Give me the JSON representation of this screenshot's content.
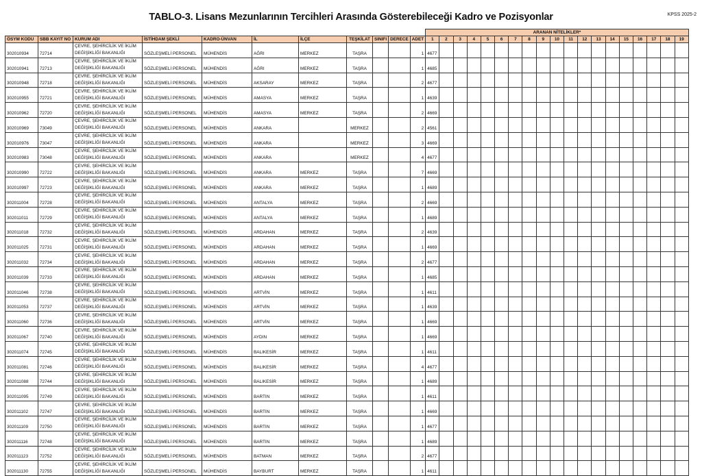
{
  "title": "TABLO-3. Lisans Mezunlarının Tercihleri Arasında Gösterebileceği Kadro ve Pozisyonlar",
  "corner_label": "KPSS 2025-2",
  "group_header": "ARANAN NİTELİKLER*",
  "columns": [
    "ÖSYM KODU",
    "SBB KAYIT NO",
    "KURUM ADI",
    "İSTİHDAM ŞEKLİ",
    "KADRO-ÜNVAN",
    "İL",
    "İLÇE",
    "TEŞKİLAT",
    "SINIFI",
    "DERECE",
    "ADET"
  ],
  "nitelik_columns": [
    "1",
    "2",
    "3",
    "4",
    "5",
    "6",
    "7",
    "8",
    "9",
    "10",
    "11",
    "12",
    "13",
    "14",
    "15",
    "16",
    "17",
    "18",
    "19"
  ],
  "kurum_line1": "ÇEVRE, ŞEHİRCİLİK VE İKLİM",
  "kurum_line2": "DEĞİŞİKLİĞİ BAKANLIĞI",
  "istihdam": "SÖZLEŞMELİ PERSONEL",
  "kadro": "MÜHENDİS",
  "header_color": "#f7cdb0",
  "rows": [
    [
      "302010934",
      "72714",
      "AĞRI",
      "MERKEZ",
      "TAŞRA",
      "1",
      "4677"
    ],
    [
      "302010941",
      "72713",
      "AĞRI",
      "MERKEZ",
      "TAŞRA",
      "1",
      "4685"
    ],
    [
      "302010948",
      "72718",
      "AKSARAY",
      "MERKEZ",
      "TAŞRA",
      "2",
      "4677"
    ],
    [
      "302010955",
      "72721",
      "AMASYA",
      "MERKEZ",
      "TAŞRA",
      "1",
      "4639"
    ],
    [
      "302010962",
      "72720",
      "AMASYA",
      "MERKEZ",
      "TAŞRA",
      "2",
      "4669"
    ],
    [
      "302010969",
      "73049",
      "ANKARA",
      "",
      "MERKEZ",
      "2",
      "4561"
    ],
    [
      "302010976",
      "73047",
      "ANKARA",
      "",
      "MERKEZ",
      "3",
      "4669"
    ],
    [
      "302010983",
      "73048",
      "ANKARA",
      "",
      "MERKEZ",
      "4",
      "4677"
    ],
    [
      "302010990",
      "72722",
      "ANKARA",
      "MERKEZ",
      "TAŞRA",
      "7",
      "4669"
    ],
    [
      "302010997",
      "72723",
      "ANKARA",
      "MERKEZ",
      "TAŞRA",
      "1",
      "4689"
    ],
    [
      "302011004",
      "72728",
      "ANTALYA",
      "MERKEZ",
      "TAŞRA",
      "2",
      "4669"
    ],
    [
      "302011011",
      "72729",
      "ANTALYA",
      "MERKEZ",
      "TAŞRA",
      "1",
      "4689"
    ],
    [
      "302011018",
      "72732",
      "ARDAHAN",
      "MERKEZ",
      "TAŞRA",
      "2",
      "4639"
    ],
    [
      "302011025",
      "72731",
      "ARDAHAN",
      "MERKEZ",
      "TAŞRA",
      "1",
      "4669"
    ],
    [
      "302011032",
      "72734",
      "ARDAHAN",
      "MERKEZ",
      "TAŞRA",
      "2",
      "4677"
    ],
    [
      "302011039",
      "72733",
      "ARDAHAN",
      "MERKEZ",
      "TAŞRA",
      "1",
      "4685"
    ],
    [
      "302011046",
      "72738",
      "ARTVİN",
      "MERKEZ",
      "TAŞRA",
      "1",
      "4611"
    ],
    [
      "302011053",
      "72737",
      "ARTVİN",
      "MERKEZ",
      "TAŞRA",
      "1",
      "4639"
    ],
    [
      "302011060",
      "72736",
      "ARTVİN",
      "MERKEZ",
      "TAŞRA",
      "1",
      "4669"
    ],
    [
      "302011067",
      "72740",
      "AYDIN",
      "MERKEZ",
      "TAŞRA",
      "1",
      "4669"
    ],
    [
      "302011074",
      "72745",
      "BALIKESİR",
      "MERKEZ",
      "TAŞRA",
      "1",
      "4611"
    ],
    [
      "302011081",
      "72746",
      "BALIKESİR",
      "MERKEZ",
      "TAŞRA",
      "4",
      "4677"
    ],
    [
      "302011088",
      "72744",
      "BALIKESİR",
      "MERKEZ",
      "TAŞRA",
      "1",
      "4689"
    ],
    [
      "302011095",
      "72749",
      "BARTIN",
      "MERKEZ",
      "TAŞRA",
      "1",
      "4611"
    ],
    [
      "302011102",
      "72747",
      "BARTIN",
      "MERKEZ",
      "TAŞRA",
      "1",
      "4669"
    ],
    [
      "302011109",
      "72750",
      "BARTIN",
      "MERKEZ",
      "TAŞRA",
      "1",
      "4677"
    ],
    [
      "302011116",
      "72748",
      "BARTIN",
      "MERKEZ",
      "TAŞRA",
      "1",
      "4689"
    ],
    [
      "302011123",
      "72752",
      "BATMAN",
      "MERKEZ",
      "TAŞRA",
      "2",
      "4677"
    ],
    [
      "302011130",
      "72755",
      "BAYBURT",
      "MERKEZ",
      "TAŞRA",
      "1",
      "4611"
    ]
  ]
}
